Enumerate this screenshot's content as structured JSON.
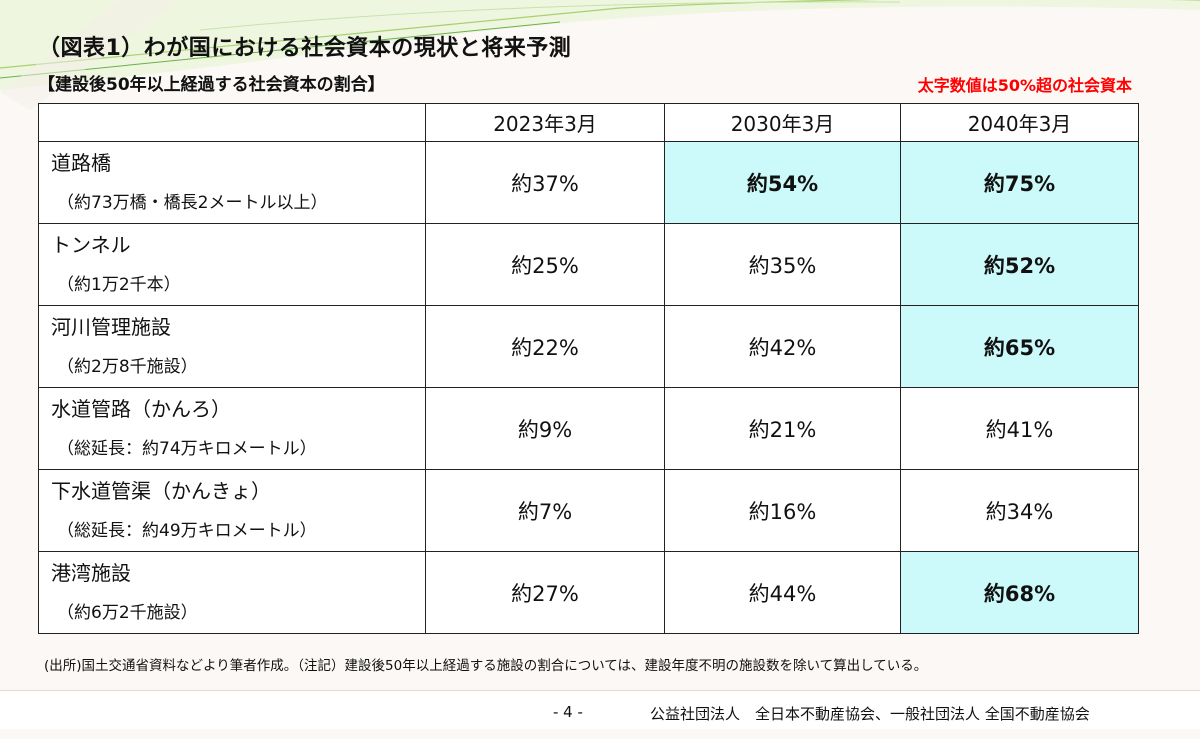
{
  "title": "（図表1）わが国における社会資本の現状と将来予測",
  "subtitle": "【建設後50年以上経過する社会資本の割合】",
  "note": "太字数値は50%超の社会資本",
  "colors": {
    "highlight": "#ccfafa",
    "note_red": "#ff0000"
  },
  "table": {
    "headers": [
      "",
      "2023年3月",
      "2030年3月",
      "2040年3月"
    ],
    "rows": [
      {
        "name": "道路橋",
        "sub": "（約73万橋・橋長2メートル以上）",
        "values": [
          "約37%",
          "約54%",
          "約75%"
        ],
        "highlight": [
          false,
          true,
          true
        ]
      },
      {
        "name": "トンネル",
        "sub": "（約1万2千本）",
        "values": [
          "約25%",
          "約35%",
          "約52%"
        ],
        "highlight": [
          false,
          false,
          true
        ]
      },
      {
        "name": "河川管理施設",
        "sub": "（約2万8千施設）",
        "values": [
          "約22%",
          "約42%",
          "約65%"
        ],
        "highlight": [
          false,
          false,
          true
        ]
      },
      {
        "name": "水道管路（かんろ）",
        "sub": "（総延長：約74万キロメートル）",
        "values": [
          "約9%",
          "約21%",
          "約41%"
        ],
        "highlight": [
          false,
          false,
          false
        ]
      },
      {
        "name": "下水道管渠（かんきょ）",
        "sub": "（総延長：約49万キロメートル）",
        "values": [
          "約7%",
          "約16%",
          "約34%"
        ],
        "highlight": [
          false,
          false,
          false
        ]
      },
      {
        "name": "港湾施設",
        "sub": "（約6万2千施設）",
        "values": [
          "約27%",
          "約44%",
          "約68%"
        ],
        "highlight": [
          false,
          false,
          true
        ]
      }
    ]
  },
  "footnote": "(出所)国土交通省資料などより筆者作成。（注記）建設後50年以上経過する施設の割合については、建設年度不明の施設数を除いて算出している。",
  "footer": {
    "page": "- 4 -",
    "org": "公益社団法人　全日本不動産協会、一般社団法人 全国不動産協会"
  }
}
